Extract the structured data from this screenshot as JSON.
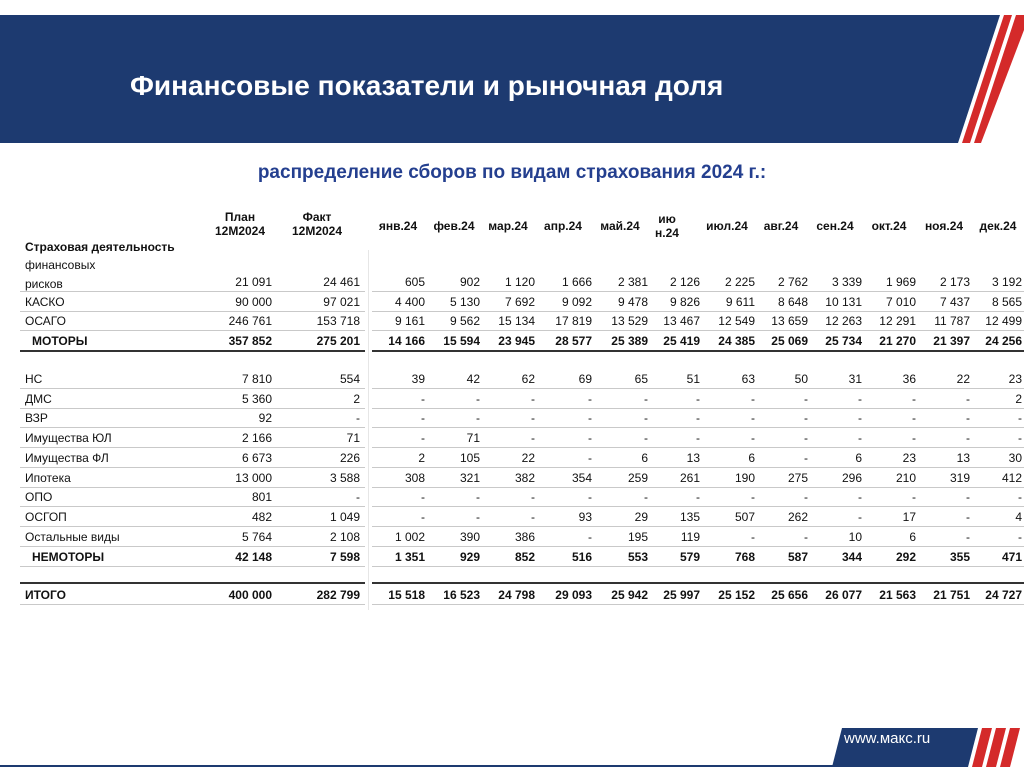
{
  "header": {
    "title": "Финансовые показатели и рыночная доля"
  },
  "subtitle": "распределение сборов по видам страхования 2024 г.:",
  "table": {
    "columns": [
      "Страховая деятельность",
      "План 12М2024",
      "Факт 12М2024",
      "янв.24",
      "фев.24",
      "мар.24",
      "апр.24",
      "май.24",
      "июн.24",
      "июл.24",
      "авг.24",
      "сен.24",
      "окт.24",
      "ноя.24",
      "дек.24"
    ],
    "rows": [
      [
        "финансовых рисков",
        "21 091",
        "24 461",
        "605",
        "902",
        "1 120",
        "1 666",
        "2 381",
        "2 126",
        "2 225",
        "2 762",
        "3 339",
        "1 969",
        "2 173",
        "3 192"
      ],
      [
        "КАСКО",
        "90 000",
        "97 021",
        "4 400",
        "5 130",
        "7 692",
        "9 092",
        "9 478",
        "9 826",
        "9 611",
        "8 648",
        "10 131",
        "7 010",
        "7 437",
        "8 565"
      ],
      [
        "ОСАГО",
        "246 761",
        "153 718",
        "9 161",
        "9 562",
        "15 134",
        "17 819",
        "13 529",
        "13 467",
        "12 549",
        "13 659",
        "12 263",
        "12 291",
        "11 787",
        "12 499"
      ],
      [
        "МОТОРЫ",
        "357 852",
        "275 201",
        "14 166",
        "15 594",
        "23 945",
        "28 577",
        "25 389",
        "25 419",
        "24 385",
        "25 069",
        "25 734",
        "21 270",
        "21 397",
        "24 256"
      ],
      [
        "НС",
        "7 810",
        "554",
        "39",
        "42",
        "62",
        "69",
        "65",
        "51",
        "63",
        "50",
        "31",
        "36",
        "22",
        "23"
      ],
      [
        "ДМС",
        "5 360",
        "2",
        "-",
        "-",
        "-",
        "-",
        "-",
        "-",
        "-",
        "-",
        "-",
        "-",
        "-",
        "2"
      ],
      [
        "ВЗР",
        "92",
        "-",
        "-",
        "-",
        "-",
        "-",
        "-",
        "-",
        "-",
        "-",
        "-",
        "-",
        "-",
        "-"
      ],
      [
        "Имущества ЮЛ",
        "2 166",
        "71",
        "-",
        "71",
        "-",
        "-",
        "-",
        "-",
        "-",
        "-",
        "-",
        "-",
        "-",
        "-"
      ],
      [
        "Имущества ФЛ",
        "6 673",
        "226",
        "2",
        "105",
        "22",
        "-",
        "6",
        "13",
        "6",
        "-",
        "6",
        "23",
        "13",
        "30"
      ],
      [
        "Ипотека",
        "13 000",
        "3 588",
        "308",
        "321",
        "382",
        "354",
        "259",
        "261",
        "190",
        "275",
        "296",
        "210",
        "319",
        "412"
      ],
      [
        "ОПО",
        "801",
        "-",
        "-",
        "-",
        "-",
        "-",
        "-",
        "-",
        "-",
        "-",
        "-",
        "-",
        "-",
        "-"
      ],
      [
        "ОСГОП",
        "482",
        "1 049",
        "-",
        "-",
        "-",
        "93",
        "29",
        "135",
        "507",
        "262",
        "-",
        "17",
        "-",
        "4"
      ],
      [
        "Остальные виды",
        "5 764",
        "2 108",
        "1 002",
        "390",
        "386",
        "-",
        "195",
        "119",
        "-",
        "-",
        "10",
        "6",
        "-",
        "-"
      ],
      [
        "НЕМОТОРЫ",
        "42 148",
        "7 598",
        "1 351",
        "929",
        "852",
        "516",
        "553",
        "579",
        "768",
        "587",
        "344",
        "292",
        "355",
        "471"
      ],
      [
        "ИТОГО",
        "400 000",
        "282 799",
        "15 518",
        "16 523",
        "24 798",
        "29 093",
        "25 942",
        "25 997",
        "25 152",
        "25 656",
        "26 077",
        "21 563",
        "21 751",
        "24 727"
      ]
    ]
  },
  "footer": {
    "url": "www.макс.ru"
  }
}
